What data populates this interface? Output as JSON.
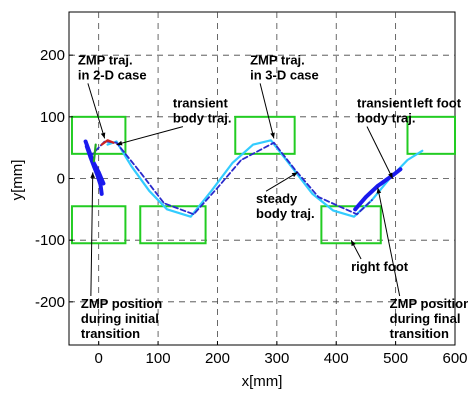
{
  "chart_data": {
    "type": "line",
    "title": "",
    "xlabel": "x[mm]",
    "ylabel": "y[mm]",
    "xlim": [
      -50,
      600
    ],
    "ylim": [
      -270,
      270
    ],
    "xticks": [
      0,
      100,
      200,
      300,
      400,
      500,
      600
    ],
    "xtick_labels": [
      "0",
      "100",
      "200",
      "300",
      "400",
      "500",
      "600"
    ],
    "yticks": [
      -200,
      -100,
      0,
      100,
      200
    ],
    "ytick_labels": [
      "-200",
      "-100",
      "0",
      "100",
      "200"
    ],
    "grid": true,
    "legend": "none",
    "series": [
      {
        "color": "#33ccff",
        "style": "solid",
        "points": [
          [
            15,
            55
          ],
          [
            30,
            60
          ],
          [
            55,
            20
          ],
          [
            85,
            -20
          ],
          [
            115,
            -50
          ],
          [
            155,
            -62
          ],
          [
            190,
            -20
          ],
          [
            225,
            25
          ],
          [
            260,
            55
          ],
          [
            290,
            62
          ],
          [
            320,
            25
          ],
          [
            360,
            -25
          ],
          [
            395,
            -52
          ],
          [
            430,
            -62
          ],
          [
            460,
            -35
          ],
          [
            490,
            0
          ],
          [
            520,
            30
          ],
          [
            545,
            45
          ]
        ]
      },
      {
        "color": "#2a2acc",
        "style": "dashed",
        "points": [
          [
            -15,
            35
          ],
          [
            10,
            60
          ],
          [
            30,
            58
          ],
          [
            70,
            10
          ],
          [
            110,
            -40
          ],
          [
            160,
            -58
          ],
          [
            200,
            -15
          ],
          [
            240,
            30
          ],
          [
            295,
            58
          ],
          [
            330,
            15
          ],
          [
            370,
            -30
          ],
          [
            435,
            -58
          ],
          [
            460,
            -35
          ]
        ]
      },
      {
        "color": "#1a1aee",
        "style": "thick",
        "points": [
          [
            -20,
            52
          ],
          [
            -14,
            35
          ],
          [
            -8,
            20
          ],
          [
            -2,
            5
          ],
          [
            3,
            -10
          ],
          [
            5,
            -25
          ]
        ]
      },
      {
        "color": "#1a1aee",
        "style": "thick",
        "points": [
          [
            -22,
            60
          ],
          [
            -10,
            28
          ],
          [
            0,
            10
          ],
          [
            8,
            -8
          ]
        ]
      },
      {
        "color": "#1a1aee",
        "style": "thick",
        "points": [
          [
            432,
            -50
          ],
          [
            450,
            -30
          ],
          [
            470,
            -12
          ],
          [
            495,
            5
          ],
          [
            508,
            15
          ]
        ]
      },
      {
        "color": "#cc2222",
        "style": "solid",
        "points": [
          [
            5,
            55
          ],
          [
            15,
            62
          ],
          [
            25,
            58
          ]
        ]
      },
      {
        "color": "#22aa22",
        "style": "solid",
        "points": [
          [
            -8,
            28
          ],
          [
            -5,
            55
          ]
        ]
      }
    ],
    "footprints": [
      {
        "x0": -45,
        "x1": 45,
        "y0": 40,
        "y1": 100
      },
      {
        "x0": -45,
        "x1": 45,
        "y0": -105,
        "y1": -45
      },
      {
        "x0": 70,
        "x1": 180,
        "y0": -105,
        "y1": -45
      },
      {
        "x0": 230,
        "x1": 330,
        "y0": 40,
        "y1": 100
      },
      {
        "x0": 375,
        "x1": 475,
        "y0": -105,
        "y1": -45
      },
      {
        "x0": 520,
        "x1": 600,
        "y0": 40,
        "y1": 100
      }
    ],
    "annotations": [
      {
        "lines": [
          "ZMP traj.",
          "in 2-D case"
        ],
        "x": -35,
        "y": 185,
        "arrow": [
          10,
          65
        ]
      },
      {
        "lines": [
          "transient",
          "body traj."
        ],
        "x": 125,
        "y": 115,
        "arrow": [
          30,
          55
        ]
      },
      {
        "lines": [
          "ZMP traj.",
          "in 3-D case"
        ],
        "x": 255,
        "y": 185,
        "arrow": [
          295,
          65
        ]
      },
      {
        "lines": [
          "transient",
          "body traj."
        ],
        "x": 435,
        "y": 115,
        "arrow": [
          495,
          0
        ]
      },
      {
        "lines": [
          "left foot"
        ],
        "x": 530,
        "y": 115,
        "arrow": null
      },
      {
        "lines": [
          "steady",
          "body traj."
        ],
        "x": 265,
        "y": -40,
        "arrow": [
          335,
          10
        ]
      },
      {
        "lines": [
          "right foot"
        ],
        "x": 425,
        "y": -150,
        "arrow": [
          425,
          -100
        ]
      },
      {
        "lines": [
          "ZMP position",
          "during initial",
          "transition"
        ],
        "x": -30,
        "y": -210,
        "arrow": [
          -10,
          10
        ]
      },
      {
        "lines": [
          "ZMP position",
          "during final",
          "transition"
        ],
        "x": 490,
        "y": -210,
        "arrow": [
          470,
          -15
        ]
      }
    ]
  }
}
